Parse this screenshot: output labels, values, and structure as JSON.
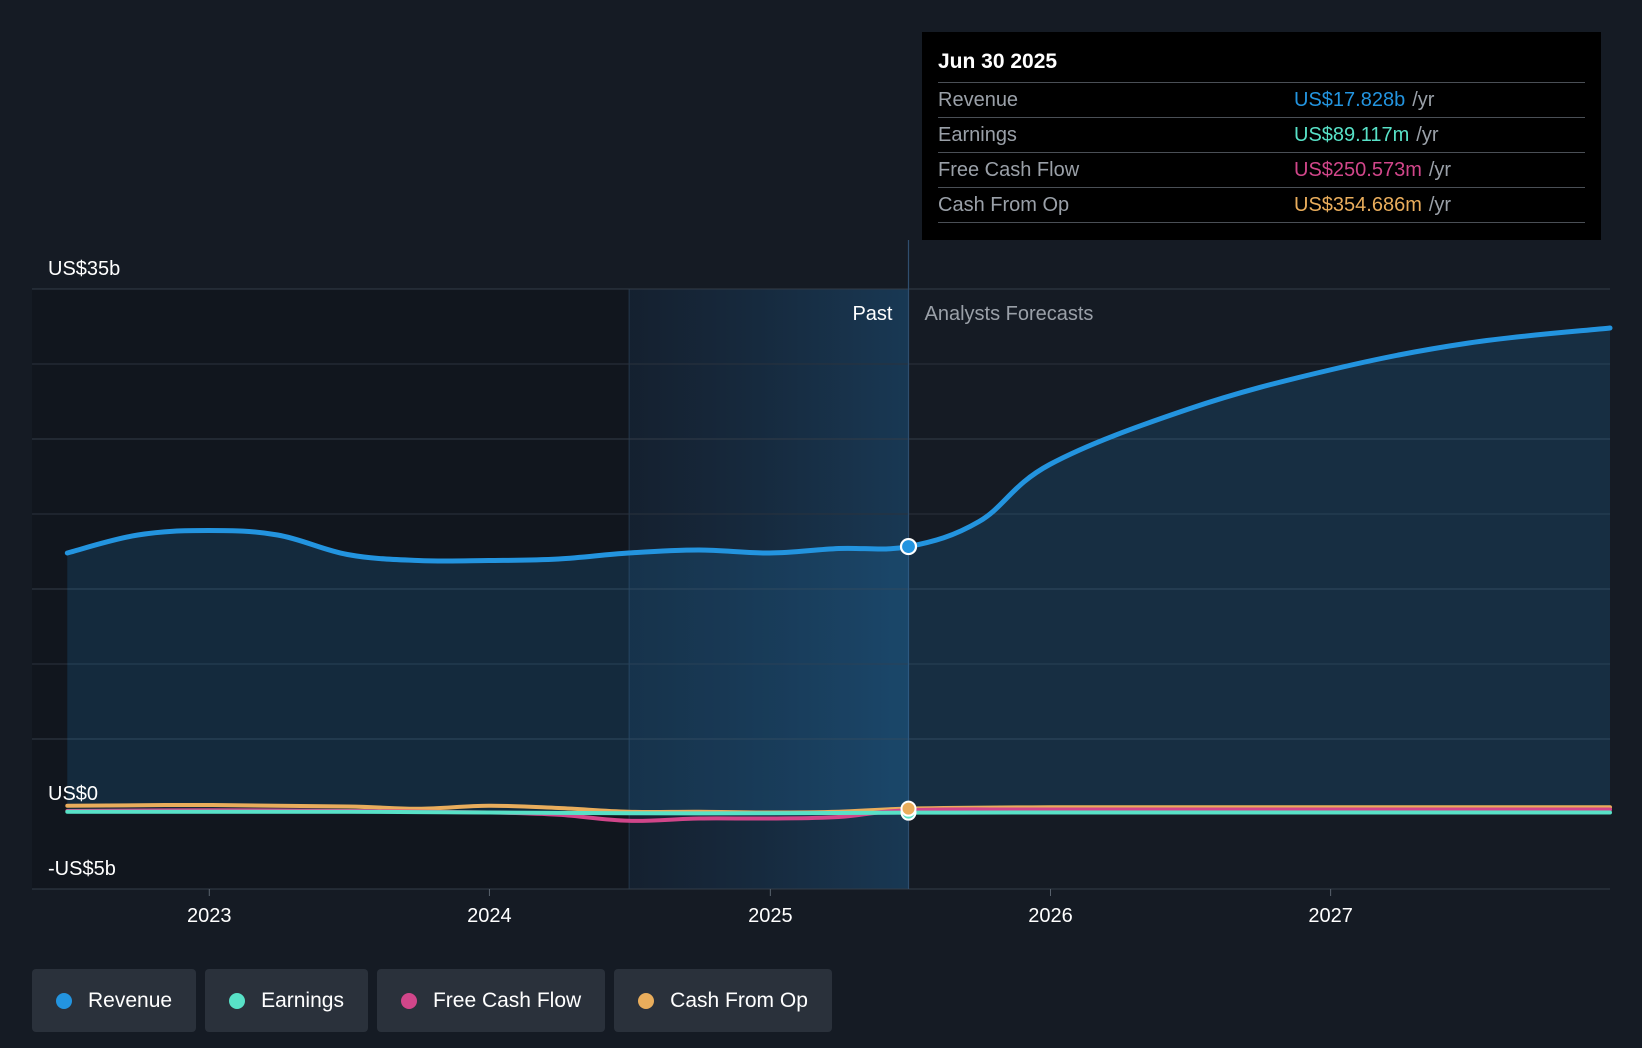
{
  "tooltip": {
    "date": "Jun 30 2025",
    "rows": [
      {
        "label": "Revenue",
        "value": "US$17.828b",
        "unit": "/yr",
        "color": "#2394df"
      },
      {
        "label": "Earnings",
        "value": "US$89.117m",
        "unit": "/yr",
        "color": "#58e1c7"
      },
      {
        "label": "Free Cash Flow",
        "value": "US$250.573m",
        "unit": "/yr",
        "color": "#d1468a"
      },
      {
        "label": "Cash From Op",
        "value": "US$354.686m",
        "unit": "/yr",
        "color": "#e9ad5c"
      }
    ]
  },
  "legend": [
    {
      "label": "Revenue",
      "color": "#2394df"
    },
    {
      "label": "Earnings",
      "color": "#58e1c7"
    },
    {
      "label": "Free Cash Flow",
      "color": "#d1468a"
    },
    {
      "label": "Cash From Op",
      "color": "#e9ad5c"
    }
  ],
  "chart_data": {
    "type": "area",
    "ylim": [
      -5,
      35
    ],
    "y_tick_labels": [
      {
        "value": 35,
        "label": "US$35b"
      },
      {
        "value": 0,
        "label": "US$0"
      },
      {
        "value": -5,
        "label": "-US$5b"
      }
    ],
    "xlim": [
      "2022-05-15",
      "2027-12-31"
    ],
    "x_ticks": [
      {
        "date": "2023-01-01",
        "label": "2023"
      },
      {
        "date": "2024-01-01",
        "label": "2024"
      },
      {
        "date": "2025-01-01",
        "label": "2025"
      },
      {
        "date": "2026-01-01",
        "label": "2026"
      },
      {
        "date": "2027-01-01",
        "label": "2027"
      }
    ],
    "past_label": "Past",
    "forecast_label": "Analysts Forecasts",
    "past_boundary_date": "2025-06-30",
    "highlight_start_date": "2024-07-01",
    "grid": true,
    "legend_position": "bottom",
    "series": [
      {
        "name": "Revenue",
        "color": "#2394df",
        "points": [
          [
            "2022-06-30",
            17.4
          ],
          [
            "2022-09-30",
            18.6
          ],
          [
            "2022-12-31",
            18.9
          ],
          [
            "2023-03-31",
            18.6
          ],
          [
            "2023-06-30",
            17.3
          ],
          [
            "2023-09-30",
            16.9
          ],
          [
            "2023-12-31",
            16.9
          ],
          [
            "2024-03-31",
            17.0
          ],
          [
            "2024-06-30",
            17.4
          ],
          [
            "2024-09-30",
            17.6
          ],
          [
            "2024-12-31",
            17.4
          ],
          [
            "2025-03-31",
            17.7
          ],
          [
            "2025-06-30",
            17.828
          ],
          [
            "2025-09-30",
            19.5
          ],
          [
            "2025-12-31",
            23.3
          ],
          [
            "2026-06-30",
            27.0
          ],
          [
            "2026-12-31",
            29.6
          ],
          [
            "2027-06-30",
            31.4
          ],
          [
            "2027-12-31",
            32.4
          ]
        ]
      },
      {
        "name": "Earnings",
        "color": "#58e1c7",
        "points": [
          [
            "2022-06-30",
            0.15
          ],
          [
            "2022-12-31",
            0.15
          ],
          [
            "2023-06-30",
            0.15
          ],
          [
            "2023-12-31",
            0.1
          ],
          [
            "2024-06-30",
            0.05
          ],
          [
            "2024-12-31",
            0.05
          ],
          [
            "2025-06-30",
            0.089
          ],
          [
            "2025-12-31",
            0.1
          ],
          [
            "2026-12-31",
            0.1
          ],
          [
            "2027-12-31",
            0.1
          ]
        ]
      },
      {
        "name": "Free Cash Flow",
        "color": "#d1468a",
        "points": [
          [
            "2022-06-30",
            0.2
          ],
          [
            "2022-12-31",
            0.25
          ],
          [
            "2023-06-30",
            0.2
          ],
          [
            "2023-12-31",
            0.1
          ],
          [
            "2024-03-31",
            -0.05
          ],
          [
            "2024-06-30",
            -0.45
          ],
          [
            "2024-09-30",
            -0.3
          ],
          [
            "2024-12-31",
            -0.3
          ],
          [
            "2025-03-31",
            -0.2
          ],
          [
            "2025-06-30",
            0.251
          ],
          [
            "2025-12-31",
            0.3
          ],
          [
            "2026-12-31",
            0.3
          ],
          [
            "2027-12-31",
            0.3
          ]
        ]
      },
      {
        "name": "Cash From Op",
        "color": "#e9ad5c",
        "points": [
          [
            "2022-06-30",
            0.55
          ],
          [
            "2022-12-31",
            0.6
          ],
          [
            "2023-06-30",
            0.5
          ],
          [
            "2023-09-30",
            0.35
          ],
          [
            "2023-12-31",
            0.55
          ],
          [
            "2024-03-31",
            0.4
          ],
          [
            "2024-06-30",
            0.15
          ],
          [
            "2024-09-30",
            0.15
          ],
          [
            "2024-12-31",
            0.1
          ],
          [
            "2025-03-31",
            0.15
          ],
          [
            "2025-06-30",
            0.355
          ],
          [
            "2025-12-31",
            0.45
          ],
          [
            "2026-12-31",
            0.45
          ],
          [
            "2027-12-31",
            0.45
          ]
        ]
      }
    ]
  }
}
